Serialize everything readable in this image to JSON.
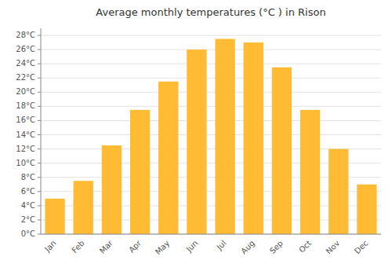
{
  "chart_data": {
    "type": "bar",
    "title": "Average monthly temperatures (°C ) in Rison",
    "categories": [
      "Jan",
      "Feb",
      "Mar",
      "Apr",
      "May",
      "Jun",
      "Jul",
      "Aug",
      "Sep",
      "Oct",
      "Nov",
      "Dec"
    ],
    "values": [
      5,
      7.5,
      12.5,
      17.5,
      21.5,
      26,
      27.5,
      27,
      23.5,
      17.5,
      12,
      7
    ],
    "color": "#FFBB33",
    "ylim": [
      0,
      29
    ],
    "yticks": [
      {
        "value": 0,
        "label": "0°C"
      },
      {
        "value": 2,
        "label": "2°C"
      },
      {
        "value": 4,
        "label": "4°C"
      },
      {
        "value": 6,
        "label": "6°C"
      },
      {
        "value": 8,
        "label": "8°C"
      },
      {
        "value": 10,
        "label": "10°C"
      },
      {
        "value": 12,
        "label": "12°C"
      },
      {
        "value": 14,
        "label": "14°C"
      },
      {
        "value": 16,
        "label": "16°C"
      },
      {
        "value": 18,
        "label": "18°C"
      },
      {
        "value": 20,
        "label": "20°C"
      },
      {
        "value": 22,
        "label": "22°C"
      },
      {
        "value": 24,
        "label": "24°C"
      },
      {
        "value": 26,
        "label": "26°C"
      },
      {
        "value": 28,
        "label": "28°C"
      }
    ],
    "grid": true
  }
}
